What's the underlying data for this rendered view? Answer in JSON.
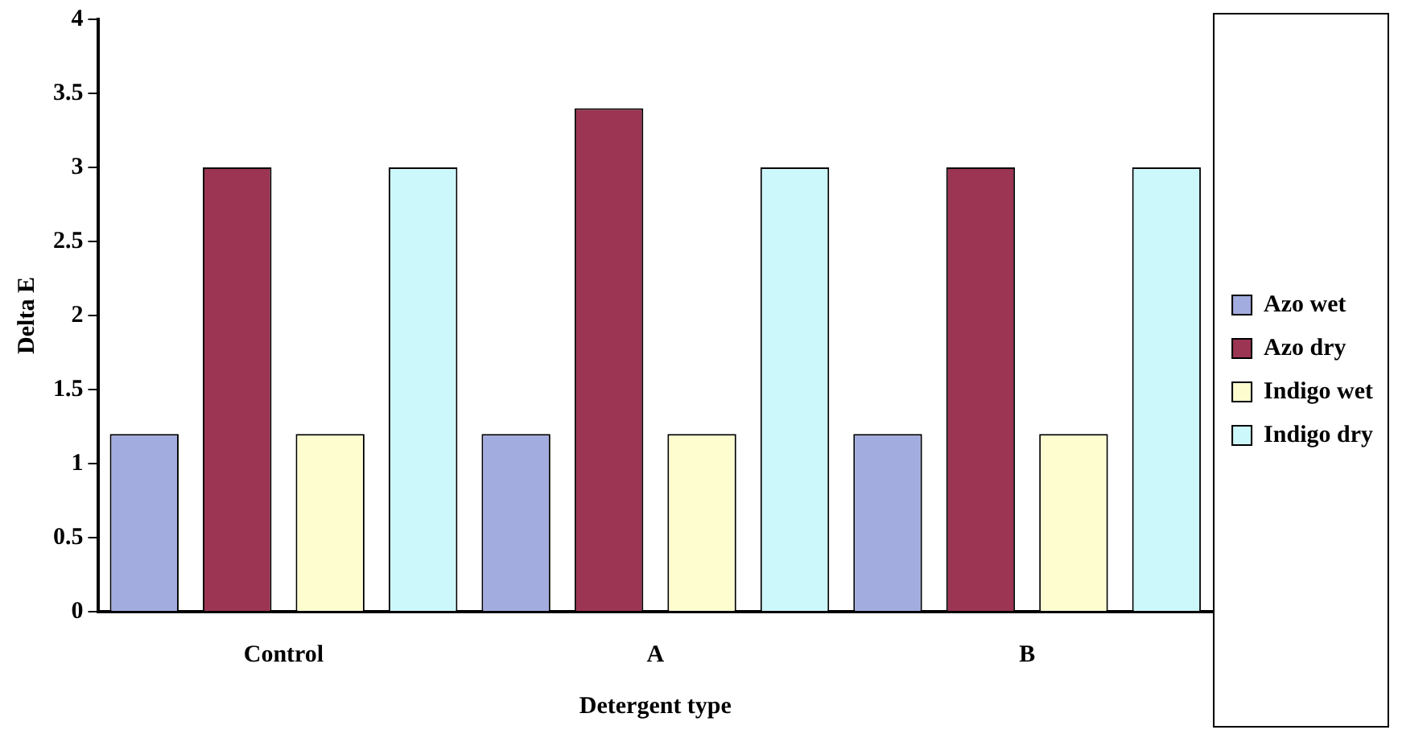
{
  "chart_data": {
    "type": "bar",
    "xlabel": "Detergent type",
    "ylabel": "Delta E",
    "categories": [
      "Control",
      "A",
      "B"
    ],
    "series": [
      {
        "name": "Azo wet",
        "color": "#a3acdf",
        "values": [
          1.2,
          1.2,
          1.2
        ]
      },
      {
        "name": "Azo dry",
        "color": "#9b3553",
        "values": [
          3.0,
          3.4,
          3.0
        ]
      },
      {
        "name": "Indigo wet",
        "color": "#fdfdd0",
        "values": [
          1.2,
          1.2,
          1.2
        ]
      },
      {
        "name": "Indigo dry",
        "color": "#cdf8fb",
        "values": [
          3.0,
          3.0,
          3.0
        ]
      }
    ],
    "ylim": [
      0,
      4
    ],
    "yticks": [
      0,
      0.5,
      1,
      1.5,
      2,
      2.5,
      3,
      3.5,
      4
    ],
    "grid": false,
    "legend": "right"
  }
}
